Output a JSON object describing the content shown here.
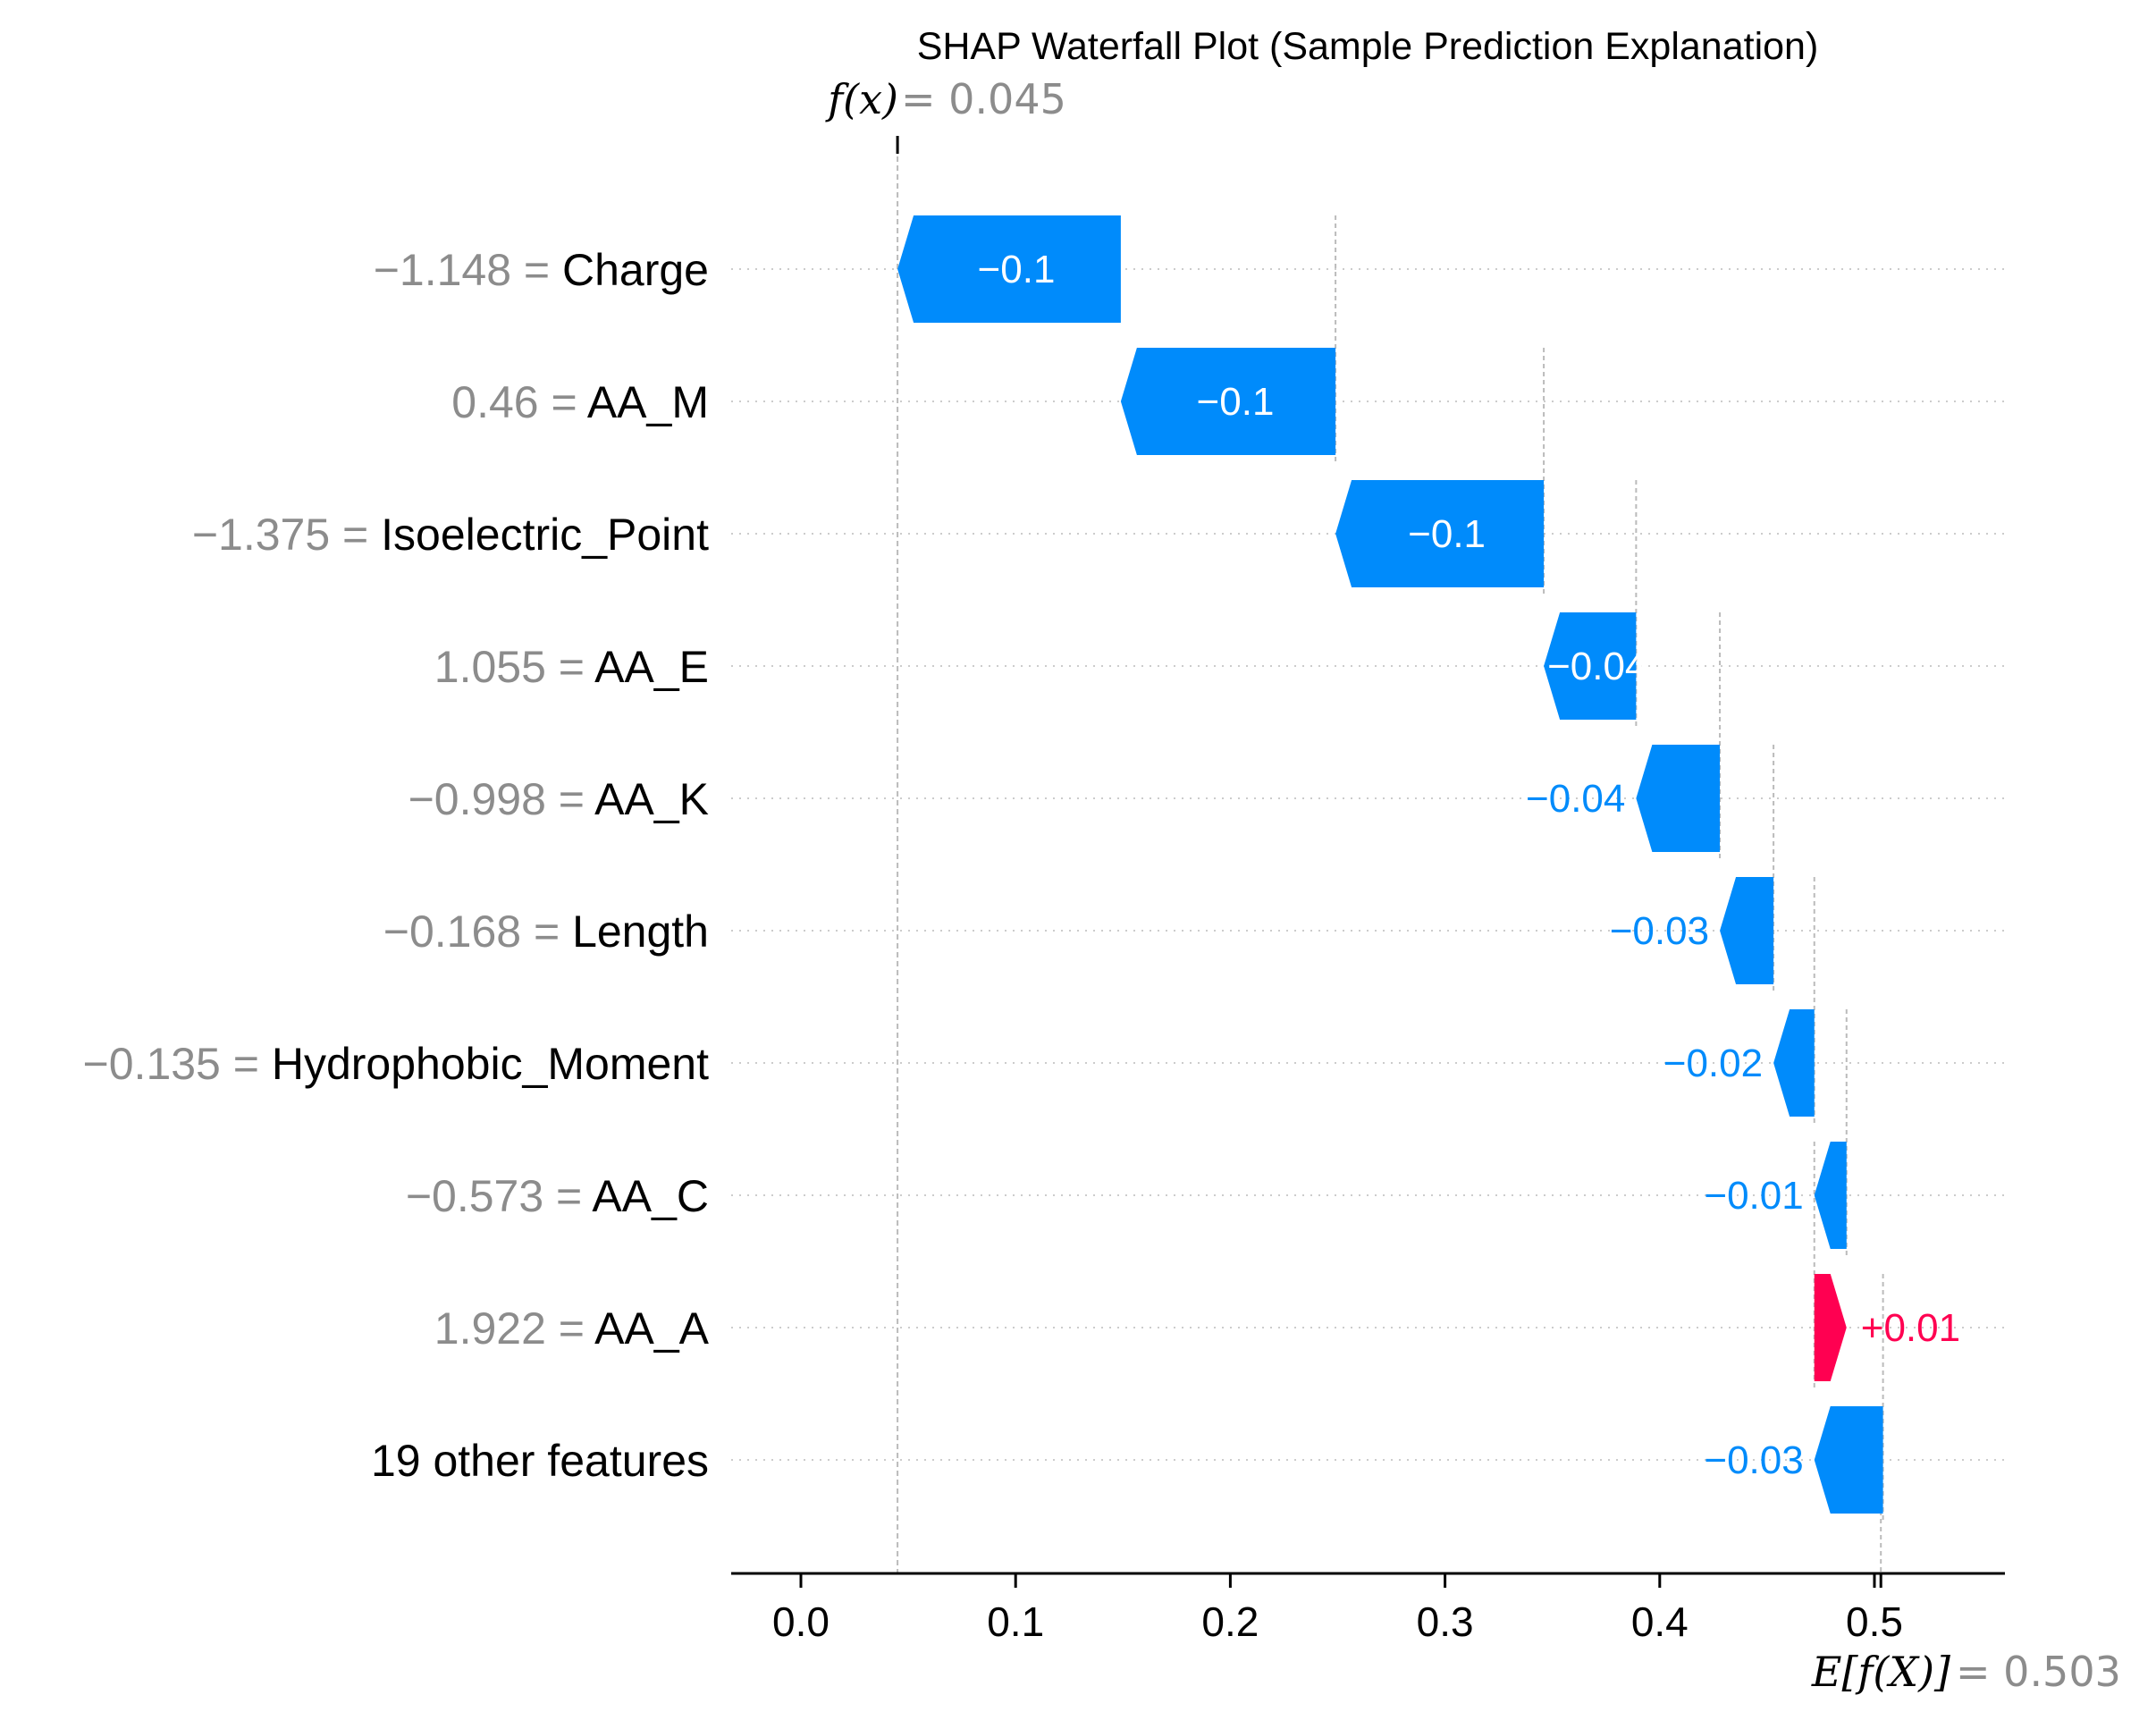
{
  "chart_data": {
    "type": "waterfall",
    "title": "SHAP Waterfall Plot (Sample Prediction Explanation)",
    "fx": {
      "label": "f(x)",
      "eq": " = ",
      "value": "0.045",
      "numeric": 0.045
    },
    "base": {
      "label": "E[f(X)]",
      "eq": " = ",
      "value": "0.503",
      "numeric": 0.503
    },
    "features": [
      {
        "value": "−1.148",
        "name": "Charge",
        "shap": -0.1,
        "label": "−0.1",
        "start": 0.149,
        "end": 0.045
      },
      {
        "value": "0.46",
        "name": "AA_M",
        "shap": -0.1,
        "label": "−0.1",
        "start": 0.249,
        "end": 0.149
      },
      {
        "value": "−1.375",
        "name": "Isoelectric_Point",
        "shap": -0.1,
        "label": "−0.1",
        "start": 0.346,
        "end": 0.249
      },
      {
        "value": "1.055",
        "name": "AA_E",
        "shap": -0.04,
        "label": "−0.04",
        "start": 0.389,
        "end": 0.346
      },
      {
        "value": "−0.998",
        "name": "AA_K",
        "shap": -0.04,
        "label": "−0.04",
        "start": 0.428,
        "end": 0.389
      },
      {
        "value": "−0.168",
        "name": "Length",
        "shap": -0.03,
        "label": "−0.03",
        "start": 0.453,
        "end": 0.428
      },
      {
        "value": "−0.135",
        "name": "Hydrophobic_Moment",
        "shap": -0.02,
        "label": "−0.02",
        "start": 0.472,
        "end": 0.453
      },
      {
        "value": "−0.573",
        "name": "AA_C",
        "shap": -0.01,
        "label": "−0.01",
        "start": 0.487,
        "end": 0.472
      },
      {
        "value": "1.922",
        "name": "AA_A",
        "shap": 0.01,
        "label": "+0.01",
        "start": 0.472,
        "end": 0.487
      },
      {
        "value": "",
        "name": "19 other features",
        "shap": -0.03,
        "label": "−0.03",
        "start": 0.504,
        "end": 0.472
      }
    ],
    "xlim": [
      -0.033,
      0.563
    ],
    "xticks": [
      "0.0",
      "0.1",
      "0.2",
      "0.3",
      "0.4",
      "0.5"
    ],
    "xtick_values": [
      0.0,
      0.1,
      0.2,
      0.3,
      0.4,
      0.5
    ],
    "colors": {
      "negative": "#008bfb",
      "positive": "#ff0051",
      "feature_value": "#8c8c8c",
      "guide": "#bbbbbb"
    }
  }
}
